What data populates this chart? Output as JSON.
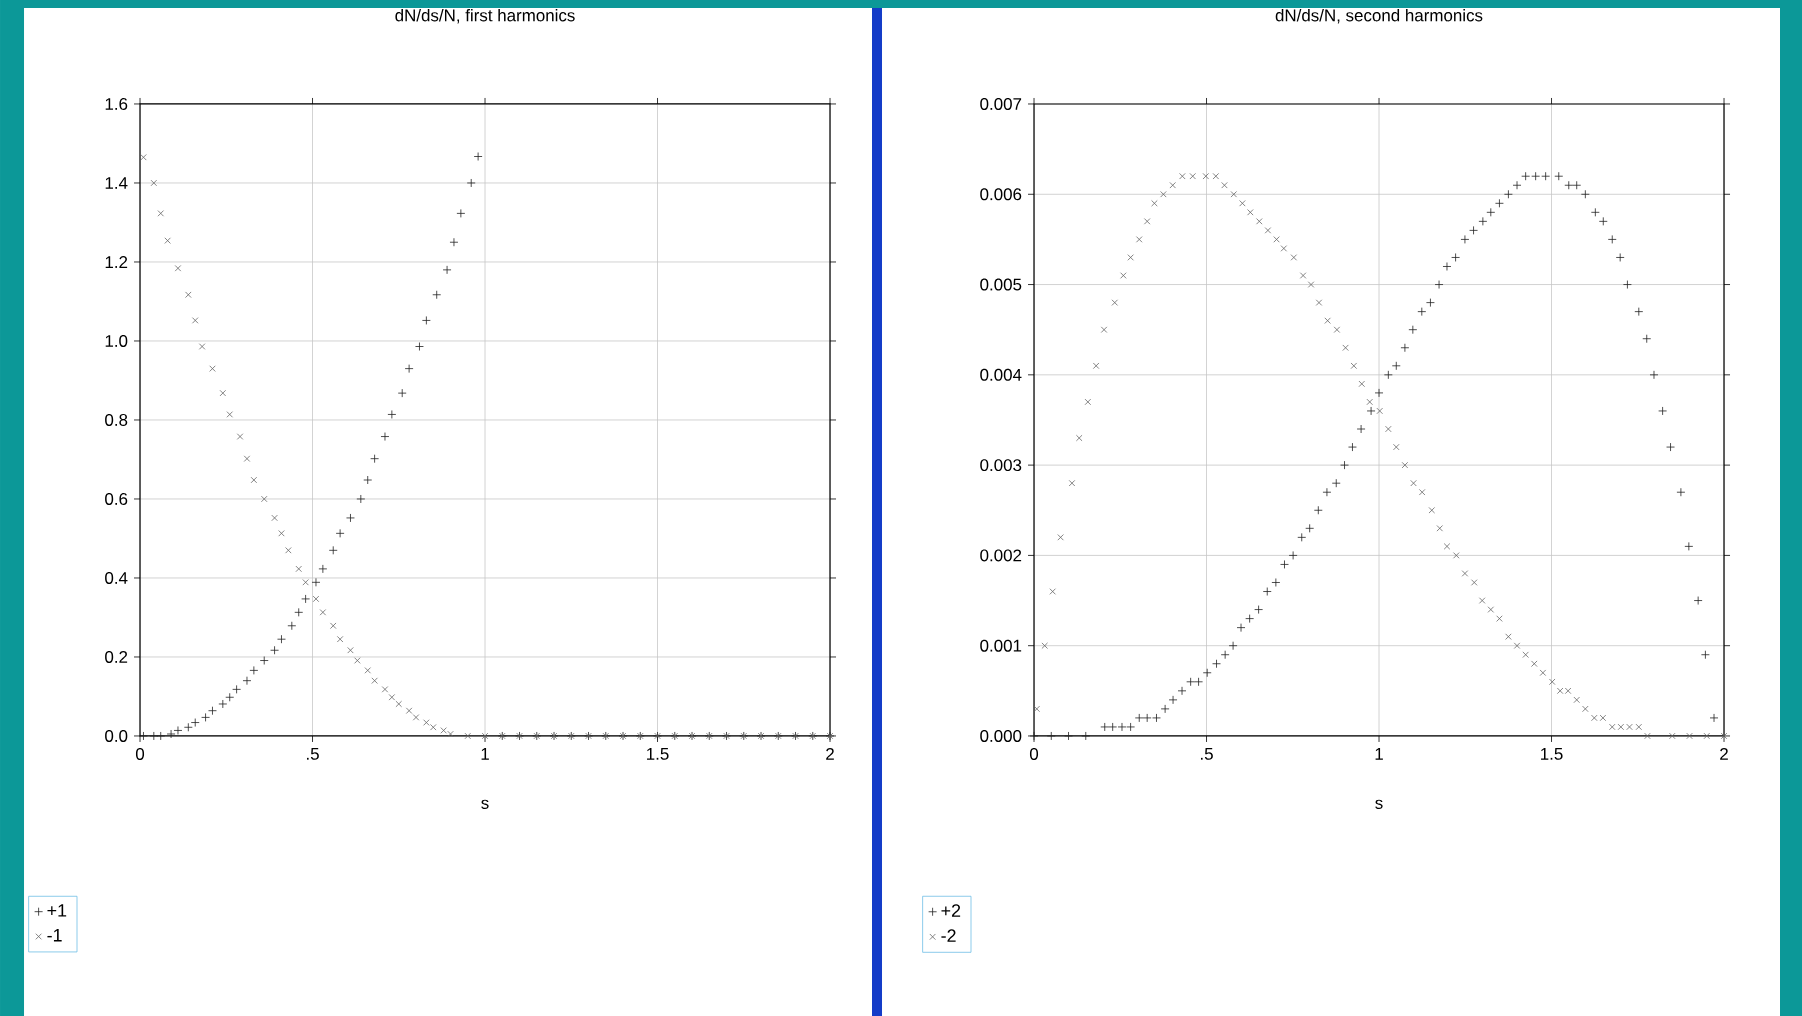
{
  "chart_data": [
    {
      "type": "scatter",
      "title": "dN/ds/N, first harmonics",
      "xlabel": "s",
      "xlim": [
        0,
        2
      ],
      "ylim": [
        0,
        1.6
      ],
      "xticks": [
        0,
        {
          "value": 0.5,
          "label": ".5"
        },
        1,
        1.5,
        2
      ],
      "yticks": [
        {
          "value": 0,
          "label": "0.0"
        },
        {
          "value": 0.2,
          "label": "0.2"
        },
        {
          "value": 0.4,
          "label": "0.4"
        },
        {
          "value": 0.6,
          "label": "0.6"
        },
        {
          "value": 0.8,
          "label": "0.8"
        },
        {
          "value": 1.0,
          "label": "1.0"
        },
        {
          "value": 1.2,
          "label": "1.2"
        },
        {
          "value": 1.4,
          "label": "1.4"
        },
        {
          "value": 1.6,
          "label": "1.6"
        }
      ],
      "grid": true,
      "legend": "bottom left",
      "series": [
        {
          "name": "+1",
          "color": "#222222",
          "marker": "plus",
          "x": [
            0.01,
            0.04,
            0.06,
            0.09,
            0.11,
            0.14,
            0.16,
            0.19,
            0.21,
            0.24,
            0.26,
            0.28,
            0.31,
            0.33,
            0.36,
            0.39,
            0.41,
            0.44,
            0.46,
            0.48,
            0.51,
            0.53,
            0.56,
            0.58,
            0.61,
            0.64,
            0.66,
            0.68,
            0.71,
            0.73,
            0.76,
            0.78,
            0.81,
            0.83,
            0.86,
            0.89,
            0.91,
            0.93,
            0.96,
            0.98,
            1.05,
            1.1,
            1.15,
            1.2,
            1.25,
            1.3,
            1.35,
            1.4,
            1.45,
            1.5,
            1.55,
            1.6,
            1.65,
            1.7,
            1.75,
            1.8,
            1.85,
            1.9,
            1.95,
            2.0
          ],
          "values": [
            0,
            0,
            0,
            0.005,
            0.014,
            0.022,
            0.034,
            0.047,
            0.064,
            0.081,
            0.098,
            0.118,
            0.14,
            0.166,
            0.191,
            0.217,
            0.245,
            0.279,
            0.313,
            0.347,
            0.389,
            0.423,
            0.47,
            0.513,
            0.552,
            0.6,
            0.648,
            0.702,
            0.758,
            0.814,
            0.868,
            0.93,
            0.986,
            1.052,
            1.117,
            1.18,
            1.25,
            1.323,
            1.4,
            1.467,
            0,
            0,
            0,
            0,
            0,
            0,
            0,
            0,
            0,
            0,
            0,
            0,
            0,
            0,
            0,
            0,
            0,
            0,
            0,
            0
          ]
        },
        {
          "name": "-1",
          "color": "#666666",
          "marker": "cross",
          "x": [
            0.01,
            0.04,
            0.06,
            0.08,
            0.11,
            0.14,
            0.16,
            0.18,
            0.21,
            0.24,
            0.26,
            0.29,
            0.31,
            0.33,
            0.36,
            0.39,
            0.41,
            0.43,
            0.46,
            0.48,
            0.51,
            0.53,
            0.56,
            0.58,
            0.61,
            0.63,
            0.66,
            0.68,
            0.71,
            0.73,
            0.75,
            0.78,
            0.8,
            0.83,
            0.85,
            0.88,
            0.9,
            0.95,
            1.0,
            1.05,
            1.1,
            1.15,
            1.2,
            1.25,
            1.3,
            1.35,
            1.4,
            1.45,
            1.5,
            1.55,
            1.6,
            1.65,
            1.7,
            1.75,
            1.8,
            1.85,
            1.9,
            1.95,
            2.0
          ],
          "values": [
            1.465,
            1.4,
            1.323,
            1.254,
            1.184,
            1.117,
            1.052,
            0.986,
            0.93,
            0.868,
            0.814,
            0.758,
            0.702,
            0.648,
            0.6,
            0.552,
            0.513,
            0.47,
            0.423,
            0.389,
            0.347,
            0.313,
            0.279,
            0.245,
            0.217,
            0.191,
            0.166,
            0.14,
            0.118,
            0.098,
            0.081,
            0.064,
            0.047,
            0.034,
            0.022,
            0.014,
            0.005,
            0,
            0,
            0,
            0,
            0,
            0,
            0,
            0,
            0,
            0,
            0,
            0,
            0,
            0,
            0,
            0,
            0,
            0,
            0,
            0,
            0,
            0
          ]
        }
      ]
    },
    {
      "type": "scatter",
      "title": "dN/ds/N, second harmonics",
      "xlabel": "s",
      "xlim": [
        0,
        2
      ],
      "ylim": [
        0,
        0.007
      ],
      "xticks": [
        0,
        {
          "value": 0.5,
          "label": ".5"
        },
        1,
        1.5,
        2
      ],
      "yticks": [
        {
          "value": 0,
          "label": "0.000"
        },
        {
          "value": 0.001,
          "label": "0.001"
        },
        {
          "value": 0.002,
          "label": "0.002"
        },
        {
          "value": 0.003,
          "label": "0.003"
        },
        {
          "value": 0.004,
          "label": "0.004"
        },
        {
          "value": 0.005,
          "label": "0.005"
        },
        {
          "value": 0.006,
          "label": "0.006"
        },
        {
          "value": 0.007,
          "label": "0.007"
        }
      ],
      "grid": true,
      "legend": "bottom left",
      "series": [
        {
          "name": "+2",
          "color": "#222222",
          "marker": "plus",
          "x": [
            0.0,
            0.05,
            0.1,
            0.15,
            0.205,
            0.228,
            0.255,
            0.28,
            0.305,
            0.328,
            0.355,
            0.38,
            0.403,
            0.429,
            0.454,
            0.477,
            0.502,
            0.529,
            0.554,
            0.577,
            0.6,
            0.625,
            0.651,
            0.676,
            0.701,
            0.726,
            0.751,
            0.776,
            0.799,
            0.824,
            0.849,
            0.876,
            0.9,
            0.923,
            0.948,
            0.977,
            1.0,
            1.027,
            1.05,
            1.075,
            1.098,
            1.124,
            1.149,
            1.174,
            1.197,
            1.222,
            1.249,
            1.274,
            1.301,
            1.324,
            1.349,
            1.375,
            1.4,
            1.425,
            1.454,
            1.483,
            1.521,
            1.55,
            1.573,
            1.598,
            1.627,
            1.65,
            1.676,
            1.699,
            1.72,
            1.753,
            1.776,
            1.797,
            1.822,
            1.845,
            1.875,
            1.898,
            1.925,
            1.946,
            1.971
          ],
          "values": [
            0,
            0,
            0,
            0,
            0.0001,
            0.0001,
            0.0001,
            0.0001,
            0.0002,
            0.0002,
            0.0002,
            0.0003,
            0.0004,
            0.0005,
            0.0006,
            0.0006,
            0.0007,
            0.0008,
            0.0009,
            0.001,
            0.0012,
            0.0013,
            0.0014,
            0.0016,
            0.0017,
            0.0019,
            0.002,
            0.0022,
            0.0023,
            0.0025,
            0.0027,
            0.0028,
            0.003,
            0.0032,
            0.0034,
            0.0036,
            0.0038,
            0.004,
            0.0041,
            0.0043,
            0.0045,
            0.0047,
            0.0048,
            0.005,
            0.0052,
            0.0053,
            0.0055,
            0.0056,
            0.0057,
            0.0058,
            0.0059,
            0.006,
            0.0061,
            0.0062,
            0.0062,
            0.0062,
            0.0062,
            0.0061,
            0.0061,
            0.006,
            0.0058,
            0.0057,
            0.0055,
            0.0053,
            0.005,
            0.0047,
            0.0044,
            0.004,
            0.0036,
            0.0032,
            0.0027,
            0.0021,
            0.0015,
            0.0009,
            0.0002
          ]
        },
        {
          "name": "-2",
          "color": "#666666",
          "marker": "cross",
          "x": [
            0.008,
            0.031,
            0.054,
            0.077,
            0.11,
            0.131,
            0.156,
            0.18,
            0.203,
            0.234,
            0.259,
            0.28,
            0.305,
            0.328,
            0.349,
            0.375,
            0.402,
            0.43,
            0.46,
            0.498,
            0.527,
            0.552,
            0.579,
            0.604,
            0.627,
            0.653,
            0.678,
            0.703,
            0.724,
            0.753,
            0.78,
            0.803,
            0.826,
            0.851,
            0.878,
            0.903,
            0.927,
            0.95,
            0.973,
            1.002,
            1.027,
            1.05,
            1.075,
            1.1,
            1.125,
            1.153,
            1.176,
            1.197,
            1.224,
            1.249,
            1.276,
            1.299,
            1.324,
            1.349,
            1.375,
            1.4,
            1.425,
            1.45,
            1.475,
            1.502,
            1.525,
            1.548,
            1.573,
            1.598,
            1.624,
            1.649,
            1.676,
            1.701,
            1.726,
            1.753,
            1.778,
            1.85,
            1.9,
            1.95,
            2.0
          ],
          "values": [
            0.0003,
            0.001,
            0.0016,
            0.0022,
            0.0028,
            0.0033,
            0.0037,
            0.0041,
            0.0045,
            0.0048,
            0.0051,
            0.0053,
            0.0055,
            0.0057,
            0.0059,
            0.006,
            0.0061,
            0.0062,
            0.0062,
            0.0062,
            0.0062,
            0.0061,
            0.006,
            0.0059,
            0.0058,
            0.0057,
            0.0056,
            0.0055,
            0.0054,
            0.0053,
            0.0051,
            0.005,
            0.0048,
            0.0046,
            0.0045,
            0.0043,
            0.0041,
            0.0039,
            0.0037,
            0.0036,
            0.0034,
            0.0032,
            0.003,
            0.0028,
            0.0027,
            0.0025,
            0.0023,
            0.0021,
            0.002,
            0.0018,
            0.0017,
            0.0015,
            0.0014,
            0.0013,
            0.0011,
            0.001,
            0.0009,
            0.0008,
            0.0007,
            0.0006,
            0.0005,
            0.0005,
            0.0004,
            0.0003,
            0.0002,
            0.0002,
            0.0001,
            0.0001,
            0.0001,
            0.0001,
            0,
            0,
            0,
            0,
            0
          ]
        }
      ]
    }
  ]
}
